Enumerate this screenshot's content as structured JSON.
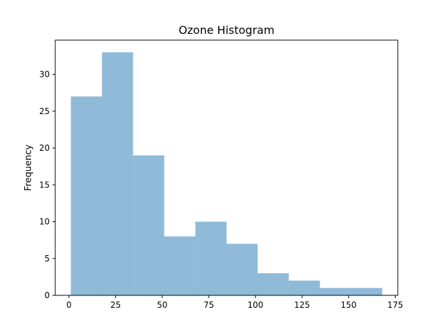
{
  "chart_data": {
    "type": "bar",
    "title": "Ozone Histogram",
    "xlabel": "",
    "ylabel": "Frequency",
    "bin_edges": [
      1,
      17.7,
      34.4,
      51.1,
      67.8,
      84.5,
      101.2,
      117.9,
      134.6,
      151.3,
      168
    ],
    "values": [
      27,
      33,
      19,
      8,
      10,
      7,
      3,
      2,
      1,
      1
    ],
    "xlim": [
      -7.35,
      176.35
    ],
    "ylim": [
      0,
      34.65
    ],
    "xticks": [
      0,
      25,
      50,
      75,
      100,
      125,
      150,
      175
    ],
    "yticks": [
      0,
      5,
      10,
      15,
      20,
      25,
      30
    ],
    "bar_color": "#1f77b4",
    "bar_opacity": 0.5,
    "grid": false
  }
}
